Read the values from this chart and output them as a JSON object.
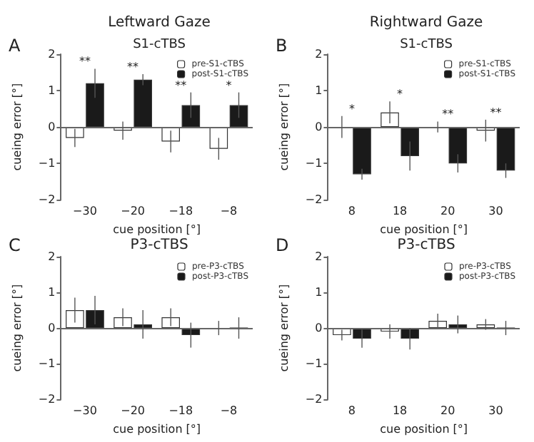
{
  "chart_data": [
    {
      "type": "bar",
      "title": "Leftward Gaze",
      "subtitle": "S1-cTBS",
      "xlabel": "cue position [°]",
      "ylabel": "cueing error [°]",
      "categories": [
        "−30",
        "−20",
        "−18",
        "−8"
      ],
      "series": [
        {
          "name": "pre-S1-cTBS",
          "color": "#ffffff",
          "values": [
            -0.3,
            -0.1,
            -0.4,
            -0.6
          ],
          "errors": [
            0.25,
            0.25,
            0.3,
            0.3
          ]
        },
        {
          "name": "post-S1-cTBS",
          "color": "#1a1a1a",
          "values": [
            1.2,
            1.3,
            0.6,
            0.6
          ],
          "errors": [
            0.4,
            0.15,
            0.35,
            0.35
          ]
        }
      ],
      "ylim": [
        -2,
        2
      ],
      "yticks": [
        -2,
        -1,
        0,
        1,
        2
      ],
      "grid": false,
      "legend": "top right",
      "ref_lines": [
        {
          "axis": "y",
          "value": 0
        }
      ],
      "annotations": [
        "A",
        "**",
        "**",
        "**",
        "*"
      ]
    },
    {
      "type": "bar",
      "title": "Rightward Gaze",
      "subtitle": "S1-cTBS",
      "xlabel": "cue position [°]",
      "ylabel": "cueing error [°]",
      "categories": [
        "8",
        "18",
        "20",
        "30"
      ],
      "series": [
        {
          "name": "pre-S1-cTBS",
          "color": "#ffffff",
          "values": [
            0,
            0.4,
            0,
            -0.1
          ],
          "errors": [
            0.3,
            0.3,
            0.15,
            0.3
          ]
        },
        {
          "name": "post-S1-cTBS",
          "color": "#1a1a1a",
          "values": [
            -1.3,
            -0.8,
            -1.0,
            -1.2
          ],
          "errors": [
            0.15,
            0.4,
            0.25,
            0.2
          ]
        }
      ],
      "ylim": [
        -2,
        2
      ],
      "yticks": [
        -2,
        -1,
        0,
        1,
        2
      ],
      "grid": false,
      "legend": "top right",
      "ref_lines": [
        {
          "axis": "y",
          "value": 0
        }
      ],
      "annotations": [
        "B",
        "*",
        "*",
        "**",
        "**"
      ]
    },
    {
      "type": "bar",
      "title": "P3-cTBS",
      "xlabel": "cue position [°]",
      "ylabel": "cueing error [°]",
      "categories": [
        "−30",
        "−20",
        "−18",
        "−8"
      ],
      "series": [
        {
          "name": "pre-P3-cTBS",
          "color": "#ffffff",
          "values": [
            0.5,
            0.3,
            0.3,
            0
          ],
          "errors": [
            0.35,
            0.25,
            0.25,
            0.2
          ]
        },
        {
          "name": "post-P3-cTBS",
          "color": "#1a1a1a",
          "values": [
            0.5,
            0.1,
            -0.2,
            0
          ],
          "errors": [
            0.4,
            0.4,
            0.35,
            0.3
          ]
        }
      ],
      "ylim": [
        -2,
        2
      ],
      "yticks": [
        -2,
        -1,
        0,
        1,
        2
      ],
      "grid": false,
      "legend": "top right",
      "ref_lines": [
        {
          "axis": "y",
          "value": 0
        }
      ],
      "annotations": [
        "C"
      ]
    },
    {
      "type": "bar",
      "title": "P3-cTBS",
      "xlabel": "cue position [°]",
      "ylabel": "cueing error [°]",
      "categories": [
        "8",
        "18",
        "20",
        "30"
      ],
      "series": [
        {
          "name": "pre-P3-cTBS",
          "color": "#ffffff",
          "values": [
            -0.2,
            -0.1,
            0.2,
            0.1
          ],
          "errors": [
            0.15,
            0.2,
            0.2,
            0.15
          ]
        },
        {
          "name": "post-P3-cTBS",
          "color": "#1a1a1a",
          "values": [
            -0.3,
            -0.3,
            0.1,
            0
          ],
          "errors": [
            0.25,
            0.3,
            0.25,
            0.2
          ]
        }
      ],
      "ylim": [
        -2,
        2
      ],
      "yticks": [
        -2,
        -1,
        0,
        1,
        2
      ],
      "grid": false,
      "legend": "top right",
      "ref_lines": [
        {
          "axis": "y",
          "value": 0
        }
      ],
      "annotations": [
        "D"
      ]
    }
  ]
}
